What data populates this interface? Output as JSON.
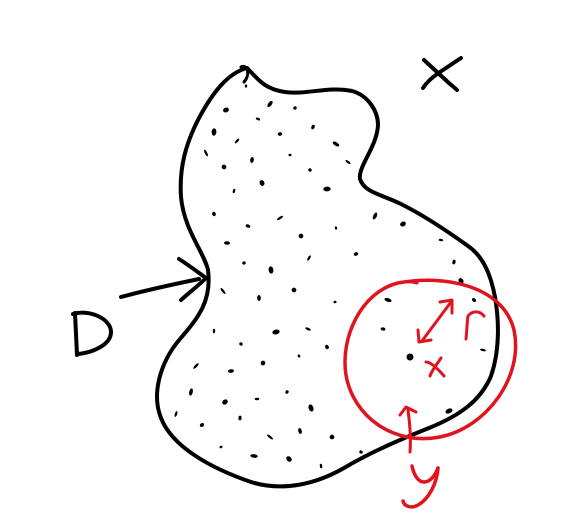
{
  "labels": {
    "set_x": "X",
    "region_d": "D",
    "center": "x",
    "radius": "r",
    "boundary_point": "y"
  },
  "colors": {
    "ink": "#000000",
    "annotation": "#e0141e",
    "background": "#ffffff"
  }
}
